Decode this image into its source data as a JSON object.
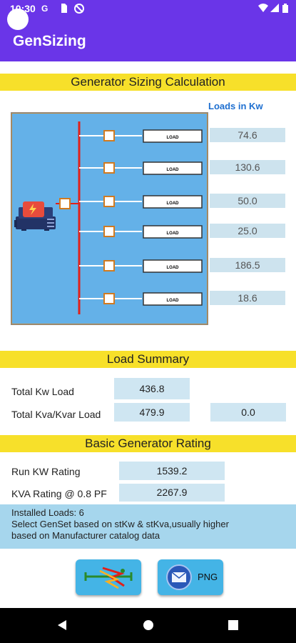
{
  "status_bar": {
    "time": "10:30",
    "icons": [
      "google-g-icon",
      "sim-card-icon",
      "sync-off-icon",
      "wifi-icon",
      "signal-icon",
      "battery-icon"
    ],
    "g_glyph": "G"
  },
  "app_bar": {
    "title": "GenSizing"
  },
  "sections": {
    "sizing_title": "Generator Sizing Calculation",
    "summary_title": "Load Summary",
    "rating_title": "Basic Generator Rating"
  },
  "diagram": {
    "loads_header": "Loads in Kw",
    "load_label": "LOAD",
    "loads": [
      {
        "label": "LOAD",
        "value": "74.6"
      },
      {
        "label": "LOAD",
        "value": "130.6"
      },
      {
        "label": "LOAD",
        "value": "50.0"
      },
      {
        "label": "LOAD",
        "value": "25.0"
      },
      {
        "label": "LOAD",
        "value": "186.5"
      },
      {
        "label": "LOAD",
        "value": "18.6"
      }
    ]
  },
  "summary": {
    "total_kw_label": "Total Kw Load",
    "total_kw_value": "436.8",
    "total_kva_label": "Total Kva/Kvar Load",
    "total_kva_value": "479.9",
    "total_kvar_value": "0.0"
  },
  "rating": {
    "run_kw_label": "Run KW Rating",
    "run_kw_value": "1539.2",
    "kva_label": "KVA Rating @ 0.8 PF",
    "kva_value": "2267.9"
  },
  "notes": {
    "installed": "Installed Loads: 6",
    "line1": "Select GenSet based on stKw & stKva,usually higher",
    "line2": "based on Manufacturer catalog data"
  },
  "actions": {
    "png_label": "PNG"
  },
  "colors": {
    "primary": "#6a35e8",
    "section_bar": "#f7e02a",
    "diagram_bg": "#64b1e8",
    "bus": "#e0201a",
    "value_box": "#cde3ee",
    "notes_bg": "#a6d6ed",
    "button": "#44b4e6"
  }
}
